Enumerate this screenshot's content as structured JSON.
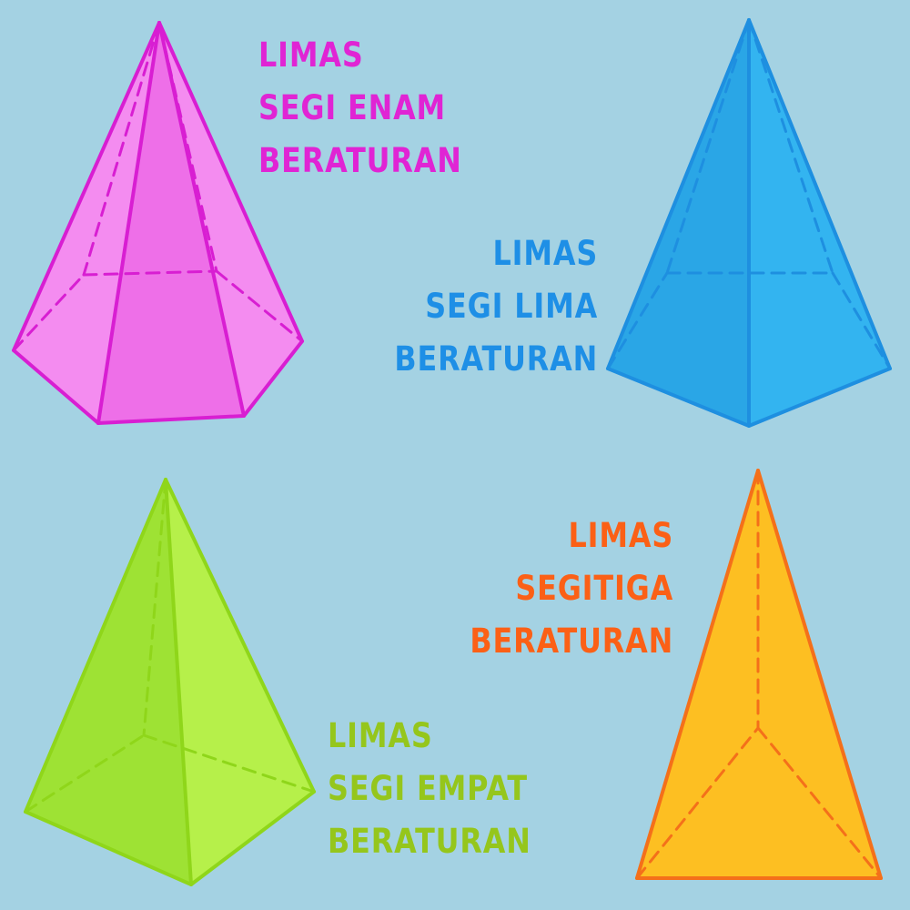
{
  "shapes": [
    {
      "id": "hexagonal",
      "lines": [
        "LIMAS",
        "SEGI ENAM",
        "BERATURAN"
      ],
      "text_color": "#e024d4",
      "fill": "#f48cf0",
      "fill_dark": "#ee6fe8",
      "stroke": "#d81ed2"
    },
    {
      "id": "pentagonal",
      "lines": [
        "LIMAS",
        "SEGI LIMA",
        "BERATURAN"
      ],
      "text_color": "#1e8fe6",
      "fill": "#33b4f0",
      "fill_dark": "#2aa6e6",
      "stroke": "#1e8fe0"
    },
    {
      "id": "triangular",
      "lines": [
        "LIMAS",
        "SEGITIGA",
        "BERATURAN"
      ],
      "text_color": "#fb6016",
      "fill": "#fdbf22",
      "fill_dark": "#fbb11c",
      "stroke": "#f4701a"
    },
    {
      "id": "square",
      "lines": [
        "LIMAS",
        "SEGI EMPAT",
        "BERATURAN"
      ],
      "text_color": "#95c61c",
      "fill": "#b6f04a",
      "fill_dark": "#9ee234",
      "stroke": "#8fd61a"
    }
  ]
}
